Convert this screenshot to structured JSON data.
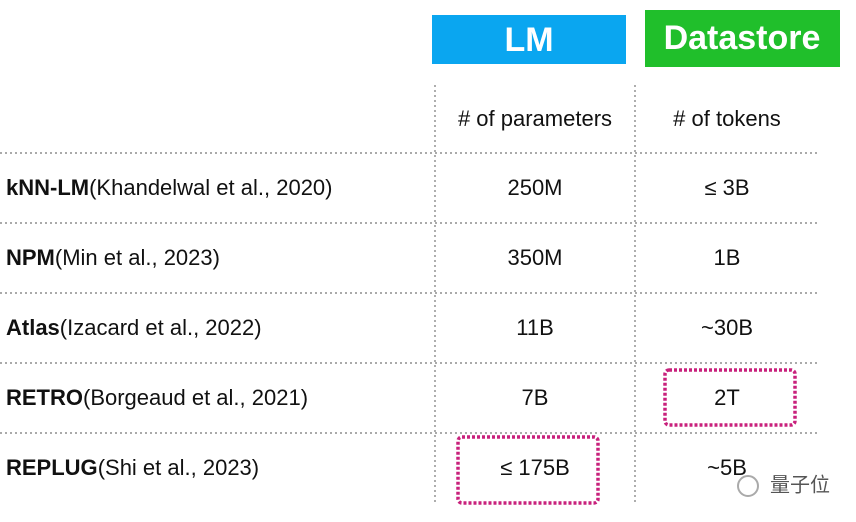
{
  "header": {
    "lm": "LM",
    "datastore": "Datastore"
  },
  "table": {
    "column_headers": [
      "# of parameters",
      "# of tokens"
    ],
    "rows": [
      {
        "name": "kNN-LM",
        "citation": "(Khandelwal et al., 2020)",
        "parameters": "250M",
        "tokens": "≤ 3B"
      },
      {
        "name": "NPM",
        "citation": "(Min et al., 2023)",
        "parameters": "350M",
        "tokens": "1B"
      },
      {
        "name": "Atlas",
        "citation": "(Izacard et al., 2022)",
        "parameters": "11B",
        "tokens": "~30B"
      },
      {
        "name": "RETRO",
        "citation": "(Borgeaud et al., 2021)",
        "parameters": "7B",
        "tokens": "2T"
      },
      {
        "name": "REPLUG",
        "citation": "(Shi et al., 2023)",
        "parameters": "≤ 175B",
        "tokens": "~5B"
      }
    ]
  },
  "watermark": "量子位"
}
